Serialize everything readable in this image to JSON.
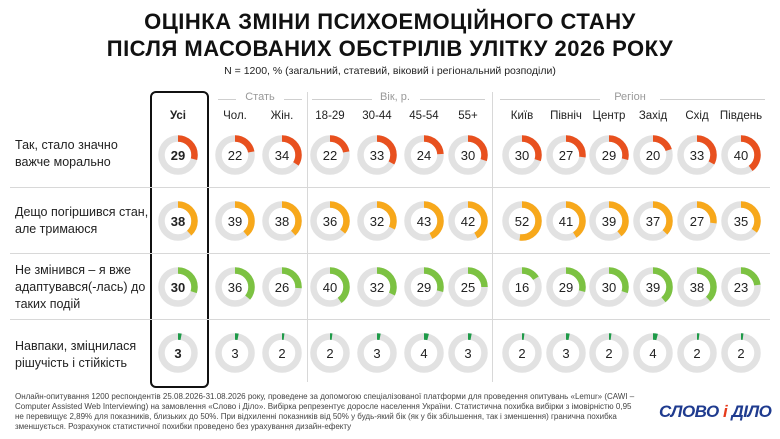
{
  "title_line1": "ОЦІНКА ЗМІНИ ПСИХОЕМОЦІЙНОГО СТАНУ",
  "title_line2": "ПІСЛЯ МАСОВАНИХ ОБСТРІЛІВ УЛІТКУ 2026 РОКУ",
  "subtitle": "N = 1200, % (загальний, статевий, віковий і регіональний розподіли)",
  "groups": {
    "gender": "Стать",
    "age": "Вік, р.",
    "region": "Регіон"
  },
  "footer": "Онлайн-опитування 1200 респондентів 25.08.2026-31.08.2026 року, проведене за допомогою спеціалізованої платформи для проведення опитувань «Lemur» (CAWI – Computer Assisted Web Interviewing) на замовлення «Слово і Діло». Вибірка репрезентує доросле населення України. Статистична похибка вибірки з імовірністю 0,95 не перевищує 2,89% для показників, близьких до 50%. При відхиленні показників від 50% у будь-який бік (як у бік збільшення, так і зменшення) гранична похибка зменшується. Розрахунок статистичної похибки проведено без урахування дизайн-ефекту",
  "logo": {
    "part1": "СЛОВО",
    "sep": "і",
    "part2": "ДІЛО"
  },
  "colors": {
    "track": "#e2e2e2",
    "row1": "#e8501e",
    "row2": "#f7a81b",
    "row3": "#7cc242",
    "row4": "#1e9a48"
  },
  "chart_data": {
    "type": "donut-table",
    "columns": [
      "Усі",
      "Чол.",
      "Жін.",
      "18-29",
      "30-44",
      "45-54",
      "55+",
      "Київ",
      "Північ",
      "Центр",
      "Захід",
      "Схід",
      "Південь"
    ],
    "rows": [
      {
        "label": "Так, стало значно важче морально",
        "values": [
          29,
          22,
          34,
          22,
          33,
          24,
          30,
          30,
          27,
          29,
          20,
          33,
          40
        ]
      },
      {
        "label": "Дещо погіршився стан, але тримаюся",
        "values": [
          38,
          39,
          38,
          36,
          32,
          43,
          42,
          52,
          41,
          39,
          37,
          27,
          35
        ]
      },
      {
        "label": "Не змінився – я вже адаптувався(-лась) до таких подій",
        "values": [
          30,
          36,
          26,
          40,
          32,
          29,
          25,
          16,
          29,
          30,
          39,
          38,
          23
        ]
      },
      {
        "label": "Навпаки, зміцнилася рішучість і стійкість",
        "values": [
          3,
          3,
          2,
          2,
          3,
          4,
          3,
          2,
          3,
          2,
          4,
          2,
          2
        ]
      }
    ]
  }
}
